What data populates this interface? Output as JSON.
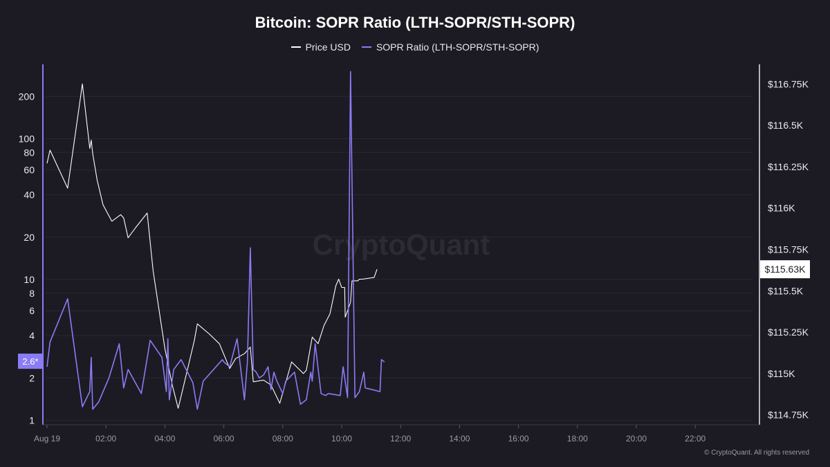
{
  "chart_data": {
    "type": "line",
    "title": "Bitcoin: SOPR Ratio (LTH-SOPR/STH-SOPR)",
    "watermark": "CryptoQuant",
    "copyright": "© CryptoQuant. All rights reserved",
    "x_ticks": [
      "Aug 19",
      "02:00",
      "04:00",
      "06:00",
      "08:00",
      "10:00",
      "12:00",
      "14:00",
      "16:00",
      "18:00",
      "20:00",
      "22:00"
    ],
    "x_range_hours": [
      0,
      24
    ],
    "y_left": {
      "scale": "log",
      "range": [
        0.93,
        330
      ],
      "ticks": [
        1,
        2,
        4,
        6,
        8,
        10,
        20,
        40,
        60,
        80,
        100,
        200
      ],
      "labels": [
        "1",
        "2",
        "4",
        "6",
        "8",
        "10",
        "20",
        "40",
        "60",
        "80",
        "100",
        "200"
      ],
      "current_label": "2.6*"
    },
    "y_right": {
      "scale": "linear",
      "range": [
        114690,
        116860
      ],
      "ticks": [
        114750,
        115000,
        115250,
        115500,
        115750,
        116000,
        116250,
        116500,
        116750
      ],
      "labels": [
        "$114.75K",
        "$115K",
        "$115.25K",
        "$115.5K",
        "$115.75K",
        "$116K",
        "$116.25K",
        "$116.5K",
        "$116.75K"
      ],
      "current_label": "$115.63K"
    },
    "grid": "horizontal",
    "legend_position": "top-center",
    "series": [
      {
        "name": "Price USD",
        "axis": "right",
        "color": "#ffffff",
        "points": [
          [
            0.0,
            116.27
          ],
          [
            0.1,
            116.35
          ],
          [
            0.7,
            116.12
          ],
          [
            1.2,
            116.75
          ],
          [
            1.45,
            116.36
          ],
          [
            1.5,
            116.41
          ],
          [
            1.55,
            116.33
          ],
          [
            1.7,
            116.17
          ],
          [
            1.9,
            116.02
          ],
          [
            2.2,
            115.92
          ],
          [
            2.5,
            115.96
          ],
          [
            2.6,
            115.94
          ],
          [
            2.75,
            115.82
          ],
          [
            3.0,
            115.88
          ],
          [
            3.4,
            115.97
          ],
          [
            3.6,
            115.62
          ],
          [
            4.0,
            115.15
          ],
          [
            4.25,
            114.93
          ],
          [
            4.45,
            114.79
          ],
          [
            4.6,
            114.9
          ],
          [
            5.0,
            115.2
          ],
          [
            5.1,
            115.3
          ],
          [
            5.5,
            115.24
          ],
          [
            5.85,
            115.18
          ],
          [
            6.2,
            115.03
          ],
          [
            6.4,
            115.09
          ],
          [
            6.7,
            115.12
          ],
          [
            6.9,
            115.16
          ],
          [
            7.0,
            114.95
          ],
          [
            7.35,
            114.96
          ],
          [
            7.6,
            114.93
          ],
          [
            7.9,
            114.82
          ],
          [
            8.3,
            115.07
          ],
          [
            8.7,
            115.0
          ],
          [
            8.8,
            115.02
          ],
          [
            9.0,
            115.22
          ],
          [
            9.2,
            115.18
          ],
          [
            9.4,
            115.29
          ],
          [
            9.6,
            115.36
          ],
          [
            9.8,
            115.53
          ],
          [
            9.9,
            115.57
          ],
          [
            10.0,
            115.52
          ],
          [
            10.1,
            115.52
          ],
          [
            10.12,
            115.34
          ],
          [
            10.3,
            115.43
          ],
          [
            10.35,
            115.56
          ],
          [
            10.55,
            115.56
          ],
          [
            10.6,
            115.57
          ],
          [
            10.7,
            115.57
          ],
          [
            11.1,
            115.58
          ],
          [
            11.2,
            115.63
          ]
        ]
      },
      {
        "name": "SOPR Ratio (LTH-SOPR/STH-SOPR)",
        "axis": "left",
        "color": "#8b7cf6",
        "points": [
          [
            0.0,
            2.4
          ],
          [
            0.1,
            3.6
          ],
          [
            0.7,
            7.3
          ],
          [
            1.2,
            1.25
          ],
          [
            1.45,
            1.6
          ],
          [
            1.5,
            2.8
          ],
          [
            1.55,
            1.2
          ],
          [
            1.75,
            1.35
          ],
          [
            2.1,
            2.0
          ],
          [
            2.45,
            3.5
          ],
          [
            2.6,
            1.7
          ],
          [
            2.75,
            2.3
          ],
          [
            3.2,
            1.55
          ],
          [
            3.5,
            3.7
          ],
          [
            3.9,
            2.8
          ],
          [
            4.05,
            1.6
          ],
          [
            4.1,
            3.8
          ],
          [
            4.15,
            1.4
          ],
          [
            4.3,
            2.3
          ],
          [
            4.55,
            2.7
          ],
          [
            4.95,
            1.85
          ],
          [
            5.1,
            1.2
          ],
          [
            5.3,
            1.9
          ],
          [
            5.95,
            2.7
          ],
          [
            6.0,
            2.6
          ],
          [
            6.2,
            2.4
          ],
          [
            6.45,
            3.8
          ],
          [
            6.7,
            1.4
          ],
          [
            6.8,
            2.6
          ],
          [
            6.9,
            16.8
          ],
          [
            7.0,
            2.3
          ],
          [
            7.1,
            2.2
          ],
          [
            7.2,
            2.0
          ],
          [
            7.35,
            2.1
          ],
          [
            7.5,
            2.4
          ],
          [
            7.6,
            1.65
          ],
          [
            7.7,
            2.2
          ],
          [
            7.8,
            1.9
          ],
          [
            8.0,
            1.55
          ],
          [
            8.1,
            1.9
          ],
          [
            8.4,
            2.2
          ],
          [
            8.6,
            1.3
          ],
          [
            8.8,
            1.4
          ],
          [
            8.95,
            2.2
          ],
          [
            9.0,
            1.9
          ],
          [
            9.1,
            3.5
          ],
          [
            9.3,
            1.55
          ],
          [
            9.45,
            1.5
          ],
          [
            9.55,
            1.55
          ],
          [
            9.95,
            1.5
          ],
          [
            10.05,
            2.4
          ],
          [
            10.2,
            1.45
          ],
          [
            10.3,
            300
          ],
          [
            10.45,
            1.45
          ],
          [
            10.6,
            1.6
          ],
          [
            10.75,
            2.2
          ],
          [
            10.8,
            1.7
          ],
          [
            11.3,
            1.6
          ],
          [
            11.35,
            2.7
          ],
          [
            11.45,
            2.6
          ]
        ]
      }
    ]
  }
}
